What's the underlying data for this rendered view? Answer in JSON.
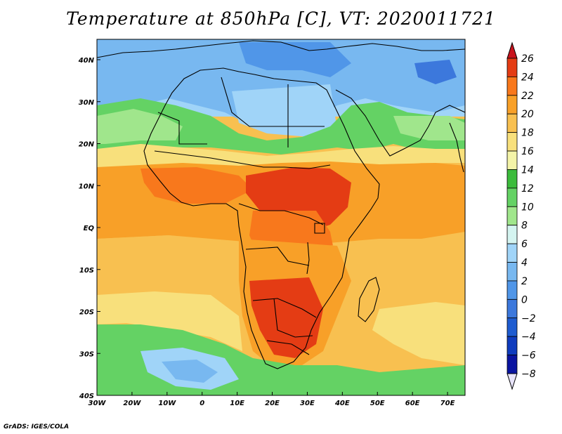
{
  "title": "Temperature at 850hPa [C], VT: 2020011721",
  "footer": "GrADS: IGES/COLA",
  "axes": {
    "x_ticks": [
      "30W",
      "20W",
      "10W",
      "0",
      "10E",
      "20E",
      "30E",
      "40E",
      "50E",
      "60E",
      "70E"
    ],
    "y_ticks": [
      "40N",
      "30N",
      "20N",
      "10N",
      "EQ",
      "10S",
      "20S",
      "30S",
      "40S"
    ]
  },
  "colorbar": {
    "levels": [
      "26",
      "24",
      "22",
      "20",
      "18",
      "16",
      "14",
      "12",
      "10",
      "8",
      "6",
      "4",
      "2",
      "0",
      "-2",
      "-4",
      "-6",
      "-8"
    ],
    "colors": [
      "#e43c14",
      "#f8781c",
      "#f8a028",
      "#f8c050",
      "#f8e07c",
      "#f4f4a8",
      "#3cbc3c",
      "#64d264",
      "#a0e68c",
      "#d4f4f0",
      "#a0d4f8",
      "#78b8f0",
      "#5096e8",
      "#3c78dc",
      "#1e5cd0",
      "#0f3cbe",
      "#0a14a0",
      "#e8e4fa"
    ],
    "top_color": "#c8141e",
    "bottom_color": "#e8e4fa"
  },
  "map_colors": {
    "cold_deep": "#3c78dc",
    "cold": "#78b8f0",
    "cool": "#a0d4f8",
    "green_light": "#a0e68c",
    "green": "#64d264",
    "green_dark": "#3cbc3c",
    "pale": "#f4f4a8",
    "yellow": "#f8e07c",
    "light_orange": "#f8c050",
    "orange": "#f8a028",
    "dark_orange": "#f8781c",
    "red": "#e43c14"
  }
}
